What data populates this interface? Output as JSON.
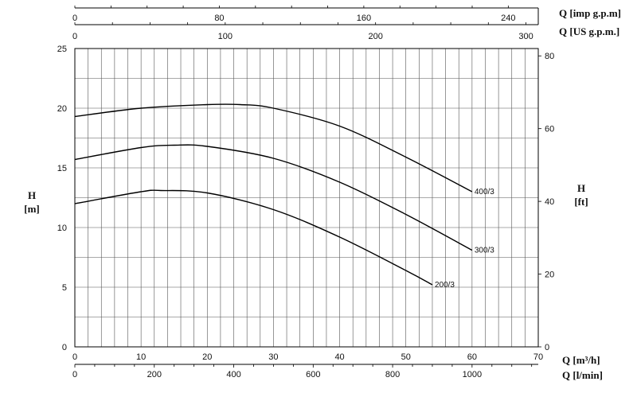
{
  "chart_data": {
    "type": "line",
    "title": "",
    "grid": true,
    "x_axes": {
      "m3h": {
        "title": "Q [m³/h]",
        "range": [
          0,
          70
        ],
        "ticks": [
          0,
          10,
          20,
          30,
          40,
          50,
          60,
          70
        ]
      },
      "lmin": {
        "title": "Q [l/min]",
        "range": [
          0,
          1166.67
        ],
        "ticks": [
          0,
          200,
          400,
          600,
          800,
          1000
        ]
      },
      "us_gpm": {
        "title": "Q [US g.p.m.]",
        "range": [
          0,
          308.2
        ],
        "ticks": [
          0,
          100,
          200,
          300
        ]
      },
      "imp_gpm": {
        "title": "Q [imp g.p.m]",
        "range": [
          0,
          256.6
        ],
        "ticks": [
          0,
          80,
          160,
          240
        ]
      }
    },
    "y_axes": {
      "m": {
        "title_line1": "H",
        "title_line2": "[m]",
        "range": [
          0,
          25
        ],
        "ticks": [
          0,
          5,
          10,
          15,
          20,
          25
        ]
      },
      "ft": {
        "title_line1": "H",
        "title_line2": "[ft]",
        "range": [
          0,
          82.02
        ],
        "ticks": [
          0,
          20,
          40,
          60,
          80
        ]
      }
    },
    "series": [
      {
        "name": "400/3",
        "x": [
          0,
          10,
          20,
          25,
          30,
          40,
          50,
          60
        ],
        "y": [
          19.3,
          20.0,
          20.3,
          20.3,
          20.0,
          18.5,
          15.9,
          13.0
        ]
      },
      {
        "name": "300/3",
        "x": [
          0,
          10,
          15,
          20,
          30,
          40,
          50,
          60
        ],
        "y": [
          15.7,
          16.7,
          16.9,
          16.8,
          15.8,
          13.8,
          11.1,
          8.1
        ]
      },
      {
        "name": "200/3",
        "x": [
          0,
          10,
          13,
          20,
          30,
          40,
          50,
          54
        ],
        "y": [
          12.0,
          13.0,
          13.1,
          12.9,
          11.5,
          9.2,
          6.4,
          5.2
        ]
      }
    ]
  }
}
